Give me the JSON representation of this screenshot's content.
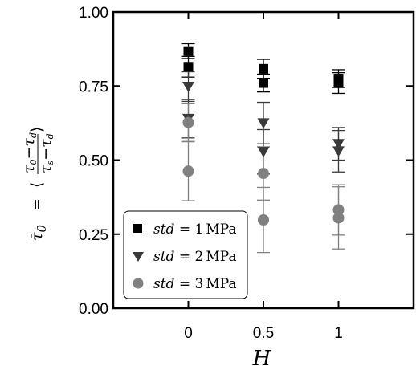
{
  "chart_data": {
    "type": "scatter",
    "xlabel": "H",
    "ylabel": "τ̄₀ = ⟨(τ₀−τ_d)/(τ_s−τ_d)⟩",
    "ylabel_parts": {
      "lhs": "τ̄",
      "lhs_sub": "0",
      "eq": "=",
      "num": "τ",
      "num_sub1": "0",
      "num_mid": "−τ",
      "num_sub2": "d",
      "den": "τ",
      "den_sub1": "s",
      "den_mid": "−τ",
      "den_sub2": "d"
    },
    "xlim": [
      -0.5,
      1.5
    ],
    "ylim": [
      0.0,
      1.0
    ],
    "x_ticks": [
      0,
      0.5,
      1
    ],
    "x_tick_labels": [
      "0",
      "0.5",
      "1"
    ],
    "y_ticks": [
      0.0,
      0.25,
      0.5,
      0.75,
      1.0
    ],
    "y_tick_labels": [
      "0.00",
      "0.25",
      "0.50",
      "0.75",
      "1.00"
    ],
    "grid": false,
    "legend_position": "bottom-left",
    "series": [
      {
        "name": "std = 1 MPa",
        "name_parts": {
          "var": "std",
          "eq": " = ",
          "val": "1",
          "unit": "MPa"
        },
        "marker": "square",
        "color": "#000000",
        "points": [
          {
            "x": 0,
            "y": 0.868,
            "err": 0.025
          },
          {
            "x": 0,
            "y": 0.815,
            "err": 0.035
          },
          {
            "x": 0.5,
            "y": 0.808,
            "err": 0.032
          },
          {
            "x": 0.5,
            "y": 0.76,
            "err": 0.03
          },
          {
            "x": 1,
            "y": 0.775,
            "err": 0.03
          },
          {
            "x": 1,
            "y": 0.76,
            "err": 0.035
          }
        ]
      },
      {
        "name": "std = 2 MPa",
        "name_parts": {
          "var": "std",
          "eq": " = ",
          "val": "2",
          "unit": "MPa"
        },
        "marker": "triangle-down",
        "color": "#3a3a3a",
        "points": [
          {
            "x": 0,
            "y": 0.748,
            "err": 0.05
          },
          {
            "x": 0,
            "y": 0.64,
            "err": 0.065
          },
          {
            "x": 0.5,
            "y": 0.625,
            "err": 0.07
          },
          {
            "x": 0.5,
            "y": 0.528,
            "err": 0.075
          },
          {
            "x": 1,
            "y": 0.555,
            "err": 0.055
          },
          {
            "x": 1,
            "y": 0.53,
            "err": 0.07
          }
        ]
      },
      {
        "name": "std = 3 MPa",
        "name_parts": {
          "var": "std",
          "eq": " = ",
          "val": "3",
          "unit": "MPa"
        },
        "marker": "circle",
        "color": "#808080",
        "points": [
          {
            "x": 0,
            "y": 0.627,
            "err": 0.065
          },
          {
            "x": 0,
            "y": 0.463,
            "err": 0.1
          },
          {
            "x": 0.5,
            "y": 0.455,
            "err": 0.09
          },
          {
            "x": 0.5,
            "y": 0.298,
            "err": 0.11
          },
          {
            "x": 1,
            "y": 0.332,
            "err": 0.085
          },
          {
            "x": 1,
            "y": 0.305,
            "err": 0.105
          }
        ]
      }
    ]
  }
}
